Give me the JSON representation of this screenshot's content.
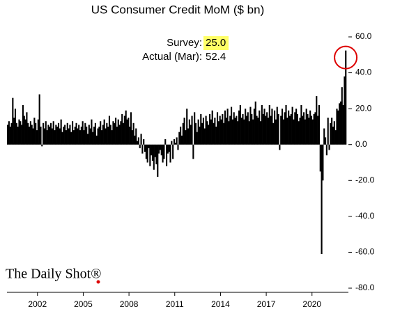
{
  "chart_data": {
    "type": "bar",
    "title": "US Consumer Credit MoM ($ bn)",
    "annotations": {
      "survey_label": "Survey:",
      "survey": "25.0",
      "actual_label": "Actual (Mar):",
      "actual": "52.4"
    },
    "source": "The Daily Shot®",
    "color": "#000000",
    "ylim": [
      -80,
      60
    ],
    "yticks": [
      {
        "value": 60,
        "label": "60.0"
      },
      {
        "value": 40,
        "label": "40.0"
      },
      {
        "value": 20,
        "label": "20.0"
      },
      {
        "value": 0,
        "label": "0.0"
      },
      {
        "value": -20,
        "label": "-20.0"
      },
      {
        "value": -40,
        "label": "-40.0"
      },
      {
        "value": -60,
        "label": "-60.0"
      },
      {
        "value": -80,
        "label": "-80.0"
      }
    ],
    "categories": [
      null,
      null,
      null,
      null,
      null,
      null,
      null,
      null,
      null,
      null,
      null,
      null,
      null,
      null,
      null,
      null,
      null,
      null,
      null,
      null,
      null,
      null,
      null,
      null,
      "2002",
      null,
      null,
      null,
      null,
      null,
      null,
      null,
      null,
      null,
      null,
      null,
      null,
      null,
      null,
      null,
      null,
      null,
      null,
      null,
      null,
      null,
      null,
      null,
      null,
      null,
      null,
      null,
      null,
      null,
      null,
      null,
      null,
      null,
      null,
      null,
      "2005",
      null,
      null,
      null,
      null,
      null,
      null,
      null,
      null,
      null,
      null,
      null,
      null,
      null,
      null,
      null,
      null,
      null,
      null,
      null,
      null,
      null,
      null,
      null,
      null,
      null,
      null,
      null,
      null,
      null,
      null,
      null,
      null,
      null,
      null,
      null,
      "2008",
      null,
      null,
      null,
      null,
      null,
      null,
      null,
      null,
      null,
      null,
      null,
      null,
      null,
      null,
      null,
      null,
      null,
      null,
      null,
      null,
      null,
      null,
      null,
      null,
      null,
      null,
      null,
      null,
      null,
      null,
      null,
      null,
      null,
      null,
      null,
      "2011",
      null,
      null,
      null,
      null,
      null,
      null,
      null,
      null,
      null,
      null,
      null,
      null,
      null,
      null,
      null,
      null,
      null,
      null,
      null,
      null,
      null,
      null,
      null,
      null,
      null,
      null,
      null,
      null,
      null,
      null,
      null,
      null,
      null,
      null,
      null,
      "2014",
      null,
      null,
      null,
      null,
      null,
      null,
      null,
      null,
      null,
      null,
      null,
      null,
      null,
      null,
      null,
      null,
      null,
      null,
      null,
      null,
      null,
      null,
      null,
      null,
      null,
      null,
      null,
      null,
      null,
      null,
      null,
      null,
      null,
      null,
      null,
      "2017",
      null,
      null,
      null,
      null,
      null,
      null,
      null,
      null,
      null,
      null,
      null,
      null,
      null,
      null,
      null,
      null,
      null,
      null,
      null,
      null,
      null,
      null,
      null,
      null,
      null,
      null,
      null,
      null,
      null,
      null,
      null,
      null,
      null,
      null,
      null,
      "2020",
      null,
      null,
      null,
      null,
      null,
      null,
      null,
      null,
      null,
      null,
      null,
      null,
      null,
      null,
      null,
      null,
      null,
      null,
      null,
      null,
      null,
      null,
      null,
      null,
      null,
      null
    ],
    "values": [
      11,
      13,
      10,
      12,
      26,
      15,
      20,
      12,
      10,
      14,
      13,
      11,
      22,
      16,
      14,
      18,
      12,
      10,
      13,
      11,
      9,
      15,
      12,
      8,
      14,
      28,
      10,
      -1,
      12,
      9,
      13,
      8,
      11,
      10,
      12,
      9,
      13,
      8,
      11,
      10,
      12,
      9,
      14,
      7,
      10,
      11,
      8,
      12,
      9,
      11,
      7,
      13,
      8,
      10,
      12,
      9,
      11,
      8,
      10,
      13,
      8,
      12,
      10,
      6,
      11,
      9,
      14,
      7,
      10,
      12,
      5,
      9,
      10,
      13,
      8,
      11,
      14,
      9,
      12,
      10,
      16,
      11,
      8,
      13,
      12,
      15,
      10,
      14,
      11,
      13,
      17,
      12,
      16,
      19,
      14,
      15,
      10,
      18,
      8,
      12,
      5,
      9,
      2,
      4,
      -2,
      6,
      -5,
      3,
      -4,
      -8,
      -10,
      -2,
      -12,
      -6,
      -9,
      -14,
      -7,
      -11,
      -18,
      -5,
      -3,
      -6,
      -10,
      -8,
      3,
      -12,
      -5,
      -4,
      -10,
      2,
      -8,
      3,
      1,
      4,
      -3,
      7,
      10,
      5,
      12,
      15,
      8,
      20,
      9,
      14,
      11,
      16,
      -8,
      18,
      12,
      7,
      14,
      10,
      17,
      12,
      15,
      9,
      16,
      13,
      11,
      17,
      14,
      19,
      12,
      15,
      10,
      18,
      13,
      16,
      14,
      17,
      12,
      19,
      15,
      20,
      13,
      16,
      21,
      14,
      18,
      15,
      16,
      13,
      19,
      22,
      15,
      17,
      14,
      20,
      16,
      18,
      13,
      21,
      17,
      14,
      20,
      24,
      16,
      15,
      19,
      13,
      22,
      17,
      20,
      16,
      18,
      15,
      22,
      16,
      20,
      12,
      19,
      14,
      21,
      17,
      -3,
      16,
      20,
      14,
      18,
      22,
      15,
      19,
      16,
      17,
      21,
      14,
      18,
      20,
      17,
      13,
      15,
      22,
      16,
      18,
      14,
      20,
      17,
      15,
      19,
      16,
      14,
      17,
      18,
      27,
      16,
      22,
      -15,
      -61,
      -20,
      9,
      4,
      -6,
      15,
      -3,
      12,
      15,
      10,
      13,
      8,
      20,
      19,
      23,
      24,
      32,
      22,
      38,
      52.4
    ]
  }
}
